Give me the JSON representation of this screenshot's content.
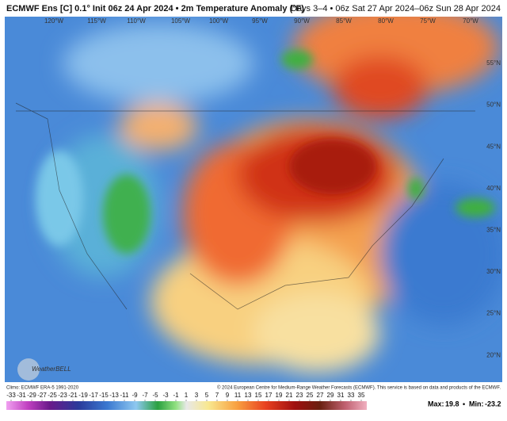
{
  "header": {
    "title": "ECMWF Ens [C] 0.1° Init 06z 24 Apr 2024 • 2m Temperature Anomaly (°F)",
    "period": "Days 3–4 • 06z Sat 27 Apr 2024–06z Sun 28 Apr 2024"
  },
  "map": {
    "lon_labels": [
      "120°W",
      "115°W",
      "110°W",
      "105°W",
      "100°W",
      "95°W",
      "90°W",
      "85°W",
      "80°W",
      "75°W",
      "70°W"
    ],
    "lat_labels": [
      "55°N",
      "50°N",
      "45°N",
      "40°N",
      "35°N",
      "30°N",
      "25°N",
      "20°N"
    ],
    "logo": "WeatherBELL"
  },
  "footer": {
    "climo": "Climo: ECMWF ERA-5 1991-2020",
    "copyright": "© 2024 European Centre for Medium-Range Weather Forecasts (ECMWF). This service is based on data and products of the ECMWF."
  },
  "colorbar": {
    "ticks": [
      -33,
      -31,
      -29,
      -27,
      -25,
      -23,
      -21,
      -19,
      -17,
      -15,
      -13,
      -11,
      -9,
      -7,
      -5,
      -3,
      -1,
      1,
      3,
      5,
      7,
      9,
      11,
      13,
      15,
      17,
      19,
      21,
      23,
      25,
      27,
      29,
      31,
      33,
      35
    ]
  },
  "stats": {
    "max_label": "Max:",
    "max": 19.8,
    "min_label": "Min:",
    "min": -23.2
  }
}
